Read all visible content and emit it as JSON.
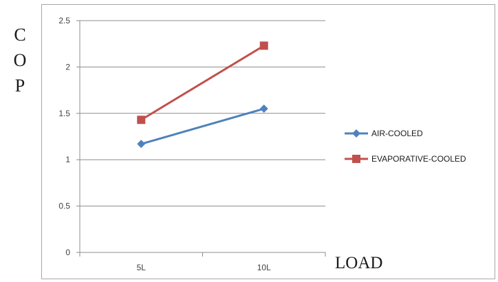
{
  "chart_data": {
    "type": "line",
    "categories": [
      "5L",
      "10L"
    ],
    "series": [
      {
        "name": "AIR-COOLED",
        "values": [
          1.17,
          1.55
        ],
        "color": "#4f81bd",
        "marker": "diamond"
      },
      {
        "name": "EVAPORATIVE-COOLED",
        "values": [
          1.43,
          2.23
        ],
        "color": "#c0504d",
        "marker": "square"
      }
    ],
    "title": "",
    "xlabel": "LOAD",
    "ylabel": "COP",
    "ylabel_letters": [
      "C",
      "O",
      "P"
    ],
    "ylim": [
      0,
      2.5
    ],
    "yticks": [
      "0",
      "0.5",
      "1",
      "1.5",
      "2",
      "2.5"
    ],
    "ytick_values": [
      0,
      0.5,
      1,
      1.5,
      2,
      2.5
    ],
    "grid": true,
    "legend_position": "right"
  }
}
